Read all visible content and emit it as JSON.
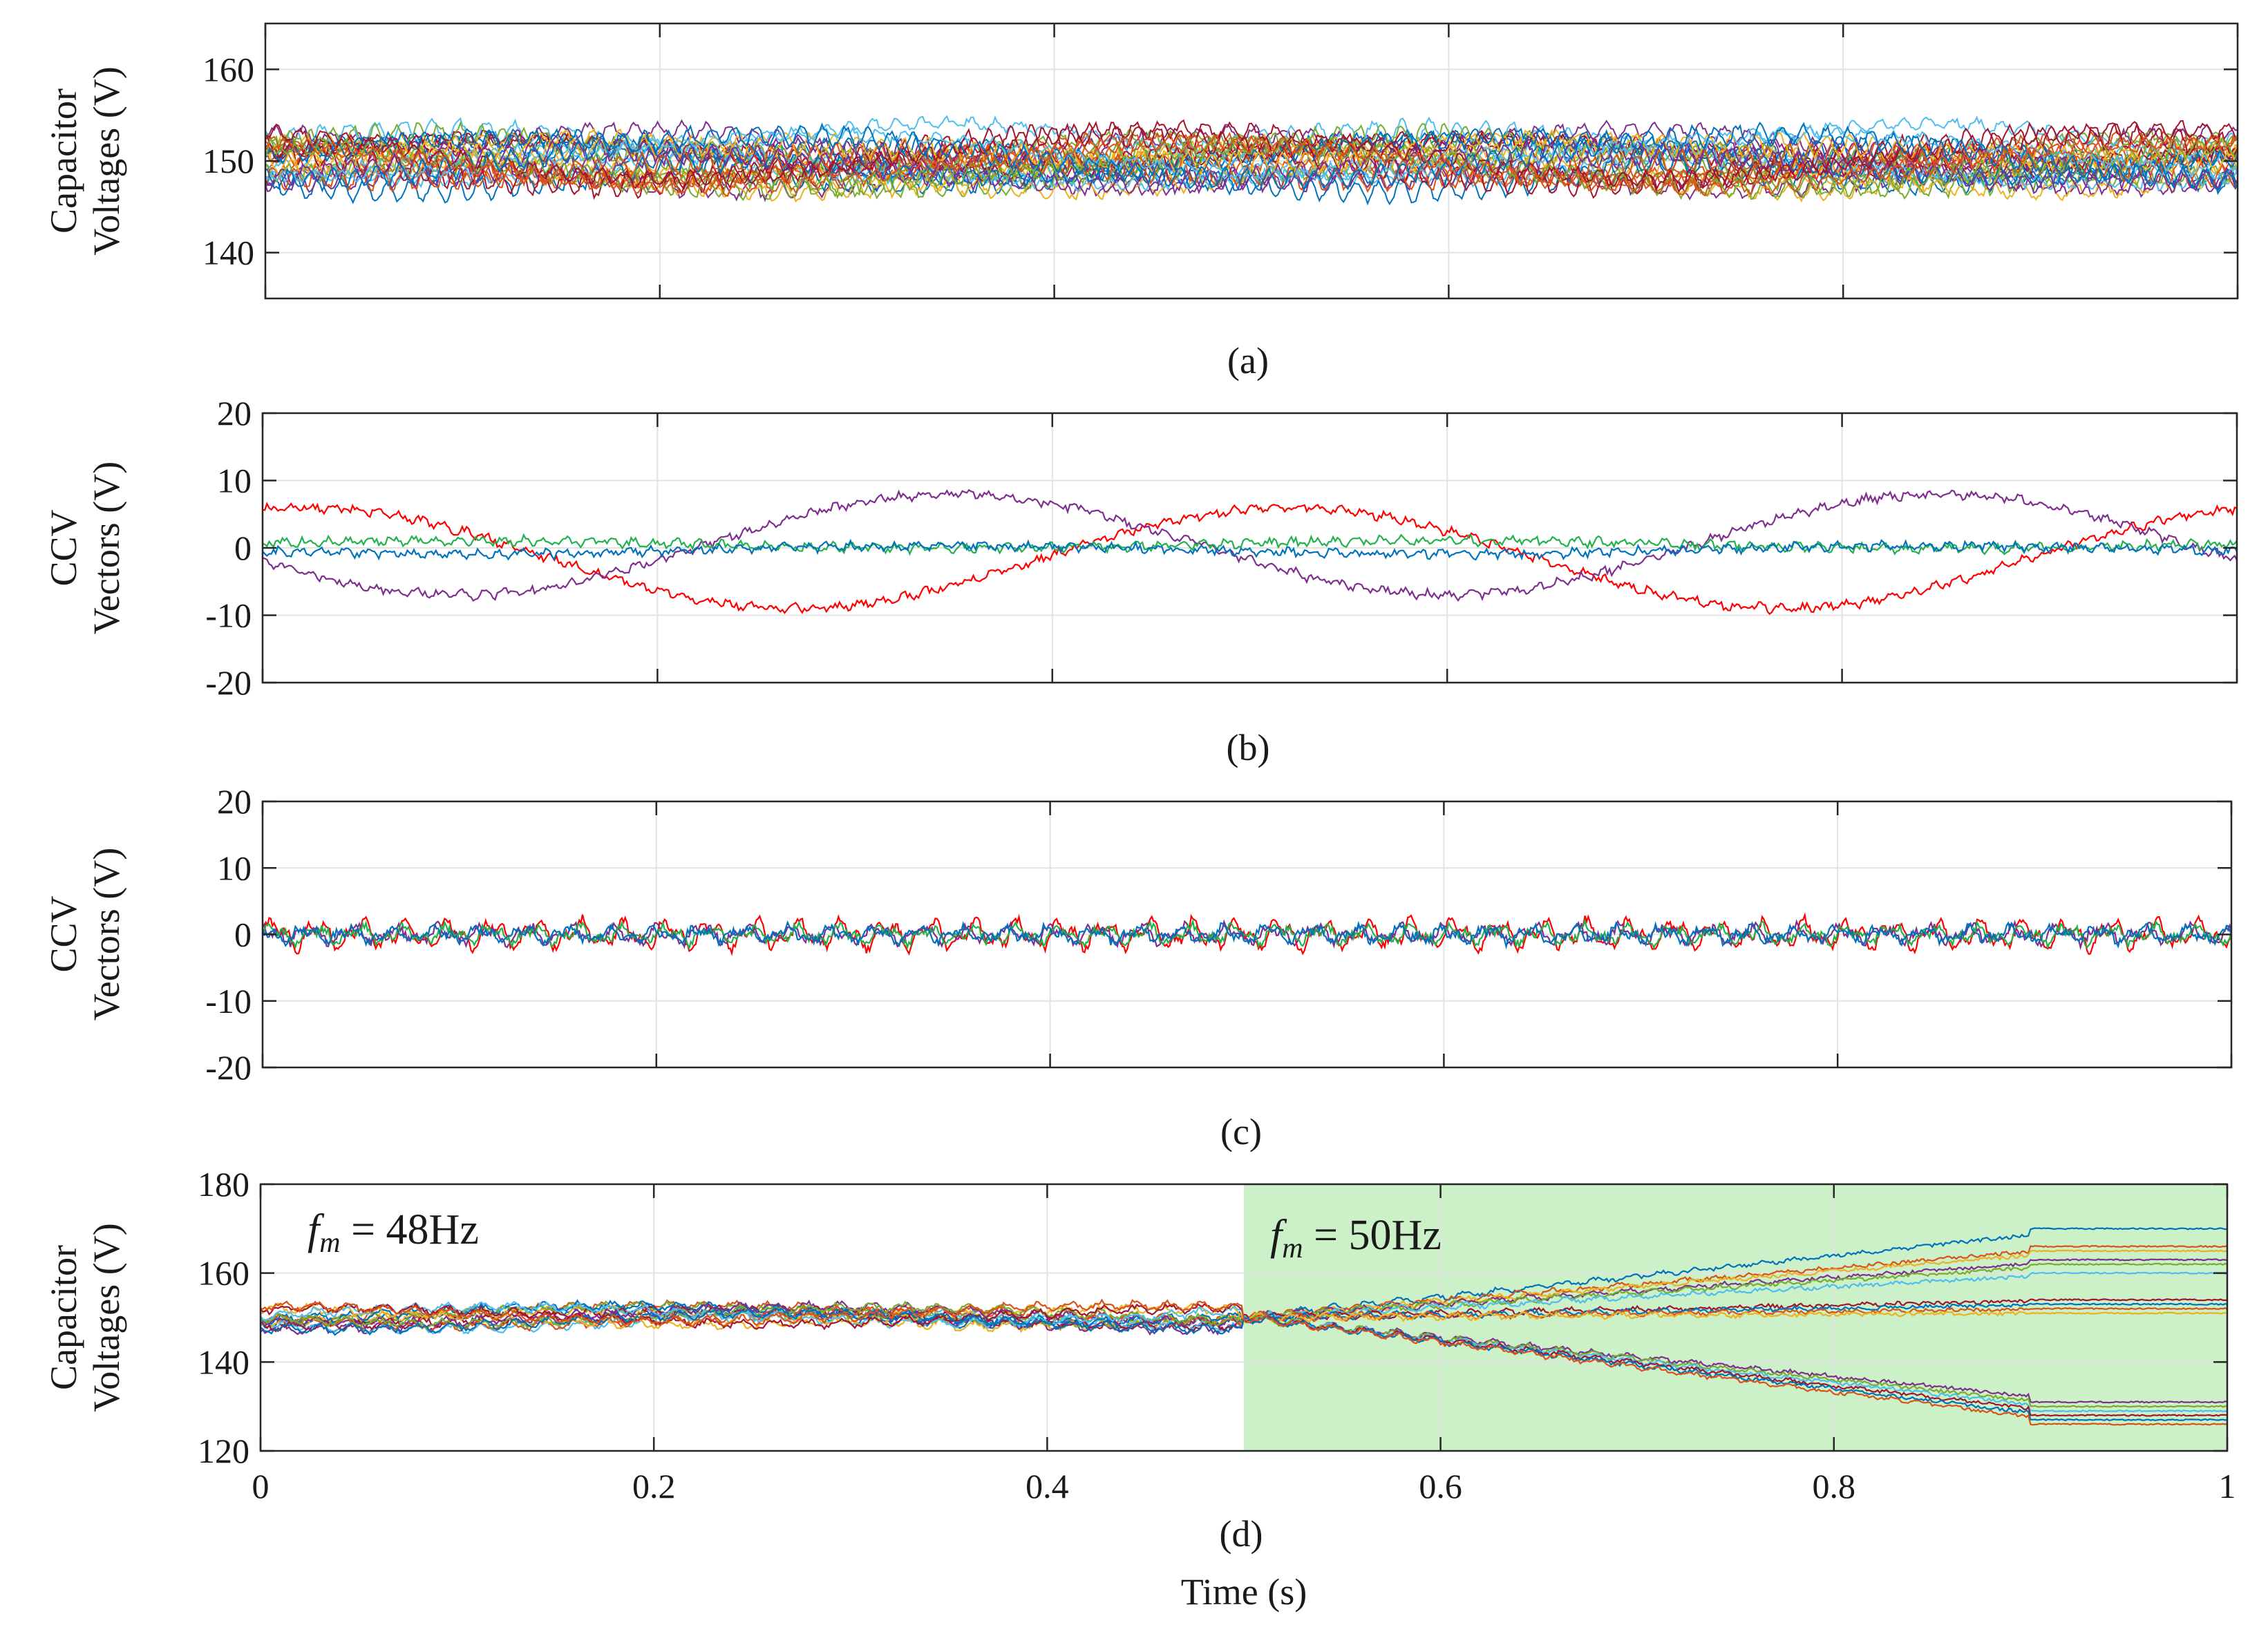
{
  "chart_data": [
    {
      "id": "a",
      "type": "line",
      "caption": "(a)",
      "ylabel": [
        "Capacitor",
        "Voltages (V)"
      ],
      "xlim": [
        0,
        1
      ],
      "ylim": [
        135,
        165
      ],
      "yticks": [
        140,
        150,
        160
      ],
      "xtick_labels_shown": false,
      "grid": true,
      "description_series": "many capacitor voltage traces oscillating around 150 V, spread approx 145-154 V",
      "series_count": 30,
      "center": 150,
      "spread": 3.0
    },
    {
      "id": "b",
      "type": "line",
      "caption": "(b)",
      "ylabel": [
        "CCV",
        "Vectors (V)"
      ],
      "xlim": [
        0,
        1
      ],
      "ylim": [
        -20,
        20
      ],
      "yticks": [
        -20,
        -10,
        0,
        10,
        20
      ],
      "xtick_labels_shown": false,
      "grid": true,
      "series": [
        {
          "name": "red",
          "color": "#ff0000",
          "amplitude": 7.5,
          "offset": -1.5,
          "period": 0.5,
          "peak_at": 0.02
        },
        {
          "name": "purple",
          "color": "#7e2f8e",
          "amplitude": 7.5,
          "offset": 0.5,
          "period": 0.5,
          "peak_at": 0.35
        },
        {
          "name": "green",
          "color": "#22b14c",
          "amplitude": 0.6,
          "offset": 0.5,
          "period": 0.5,
          "peak_at": 0.1
        },
        {
          "name": "blue",
          "color": "#0072bd",
          "amplitude": 0.6,
          "offset": -0.3,
          "period": 0.5,
          "peak_at": 0.35
        }
      ]
    },
    {
      "id": "c",
      "type": "line",
      "caption": "(c)",
      "ylabel": [
        "CCV",
        "Vectors (V)"
      ],
      "xlim": [
        0,
        1
      ],
      "ylim": [
        -20,
        20
      ],
      "yticks": [
        -20,
        -10,
        0,
        10,
        20
      ],
      "xtick_labels_shown": false,
      "grid": true,
      "series": [
        {
          "name": "red",
          "color": "#ff0000",
          "amplitude": 2.5
        },
        {
          "name": "purple",
          "color": "#7e2f8e",
          "amplitude": 1.5
        },
        {
          "name": "green",
          "color": "#22b14c",
          "amplitude": 1.5
        },
        {
          "name": "blue",
          "color": "#0072bd",
          "amplitude": 1.3
        }
      ]
    },
    {
      "id": "d",
      "type": "line",
      "caption": "(d)",
      "ylabel": [
        "Capacitor",
        "Voltages (V)"
      ],
      "xlabel": "Time (s)",
      "xlim": [
        0,
        1
      ],
      "ylim": [
        120,
        180
      ],
      "yticks": [
        120,
        140,
        160,
        180
      ],
      "xticks": [
        0,
        0.2,
        0.4,
        0.6,
        0.8,
        1
      ],
      "xtick_labels": [
        "0",
        "0.2",
        "0.4",
        "0.6",
        "0.8",
        "1"
      ],
      "grid": true,
      "shaded_region": {
        "x_start": 0.5,
        "x_end": 1.0,
        "color": "#ccf0c8"
      },
      "switch_time": 0.5,
      "settle_time": 0.9,
      "annotations": [
        {
          "id": "left",
          "var": "f",
          "sub": "m",
          "rest": " = 48Hz"
        },
        {
          "id": "right",
          "var": "f",
          "sub": "m",
          "rest": " = 50Hz"
        }
      ],
      "final_levels": [
        170,
        166,
        165,
        163,
        162,
        160,
        154,
        153,
        152,
        151,
        131,
        130,
        129,
        128,
        127,
        126
      ]
    }
  ],
  "palette": [
    "#0072bd",
    "#d95319",
    "#edb120",
    "#7e2f8e",
    "#77ac30",
    "#4dbeee",
    "#a2142f"
  ]
}
